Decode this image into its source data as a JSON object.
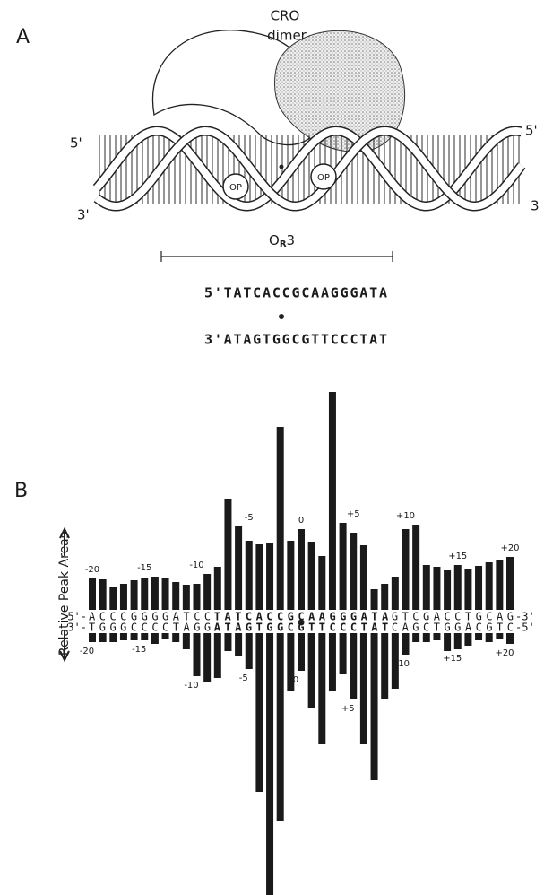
{
  "panel_a": {
    "label": "A",
    "protein_label": [
      "CRO",
      "dimer"
    ],
    "end_labels": {
      "left_top": "5'",
      "left_bottom": "3'",
      "right_top": "5'",
      "right_bottom": "3"
    },
    "op_labels": [
      "OP",
      "OP"
    ],
    "site_label": {
      "main": "O",
      "subscript": "R",
      "suffix": "3"
    },
    "sequence": {
      "top": "5'TATCACCGCAAGGGATA",
      "bottom": "3'ATAGTGGCGTTCCCTAT"
    }
  },
  "chart_data": {
    "type": "mirror-bar",
    "panel_label": "B",
    "y_label": "Relative Peak Areas",
    "color": "#1a1a1a",
    "categories": [
      "-20",
      null,
      null,
      null,
      null,
      "-15",
      null,
      null,
      null,
      null,
      "-10",
      null,
      null,
      null,
      null,
      "-5",
      null,
      null,
      null,
      null,
      "0",
      null,
      null,
      null,
      null,
      "+5",
      null,
      null,
      null,
      null,
      "+10",
      null,
      null,
      null,
      null,
      "+15",
      null,
      null,
      null,
      null,
      "+20"
    ],
    "upper_values": [
      35,
      34,
      25,
      29,
      33,
      35,
      37,
      35,
      31,
      28,
      29,
      40,
      48,
      124,
      93,
      77,
      73,
      75,
      204,
      77,
      90,
      76,
      60,
      243,
      97,
      86,
      72,
      23,
      29,
      37,
      90,
      95,
      50,
      48,
      44,
      50,
      46,
      49,
      53,
      55,
      59
    ],
    "lower_values": [
      10,
      10,
      10,
      8,
      8,
      8,
      12,
      6,
      10,
      18,
      48,
      54,
      50,
      20,
      26,
      40,
      177,
      292,
      209,
      64,
      42,
      84,
      124,
      64,
      46,
      74,
      124,
      164,
      74,
      62,
      24,
      10,
      10,
      8,
      20,
      18,
      14,
      8,
      10,
      6,
      12
    ],
    "top_strand": [
      "5'-",
      "ACCCGGGGATCC",
      "TATCACCGCAAGGGATA",
      "GTCGACCTGCAG",
      "-3'"
    ],
    "bottom_strand": [
      "3'-",
      "TGGGCCCCTAGG",
      "ATAGTGGCGTTCCCTAT",
      "CAGCTGGACGTC",
      "-5'"
    ]
  }
}
